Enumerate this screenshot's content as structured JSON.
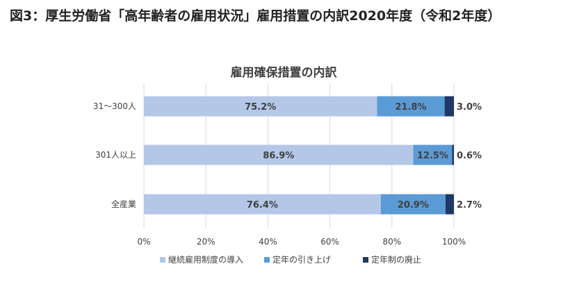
{
  "figure_title": "図3：厚生労働省「高年齢者の雇用状況」雇用措置の内訳2020年度（令和2年度）",
  "colors": {
    "continued_employment": "#b4c7e7",
    "retirement_age_raised": "#5b9bd5",
    "retirement_abolished": "#1f3864",
    "grid": "#d9d9d9",
    "text": "#404040"
  },
  "chart_data": {
    "type": "bar",
    "orientation": "horizontal",
    "stacked": true,
    "title": "雇用確保措置の内訳",
    "categories": [
      "31～300人",
      "301人以上",
      "全産業"
    ],
    "series": [
      {
        "name": "継続雇用制度の導入",
        "values": [
          75.2,
          86.9,
          76.4
        ],
        "labels": [
          "75.2%",
          "86.9%",
          "76.4%"
        ],
        "color": "#b4c7e7"
      },
      {
        "name": "定年の引き上げ",
        "values": [
          21.8,
          12.5,
          20.9
        ],
        "labels": [
          "21.8%",
          "12.5%",
          "20.9%"
        ],
        "color": "#5b9bd5"
      },
      {
        "name": "定年制の廃止",
        "values": [
          3.0,
          0.6,
          2.7
        ],
        "labels": [
          "3.0%",
          "0.6%",
          "2.7%"
        ],
        "color": "#1f3864"
      }
    ],
    "xlim": [
      0,
      100
    ],
    "xticks": [
      0,
      20,
      40,
      60,
      80,
      100
    ],
    "xtick_labels": [
      "0%",
      "20%",
      "40%",
      "60%",
      "80%",
      "100%"
    ],
    "grid": true,
    "legend": "bottom"
  }
}
